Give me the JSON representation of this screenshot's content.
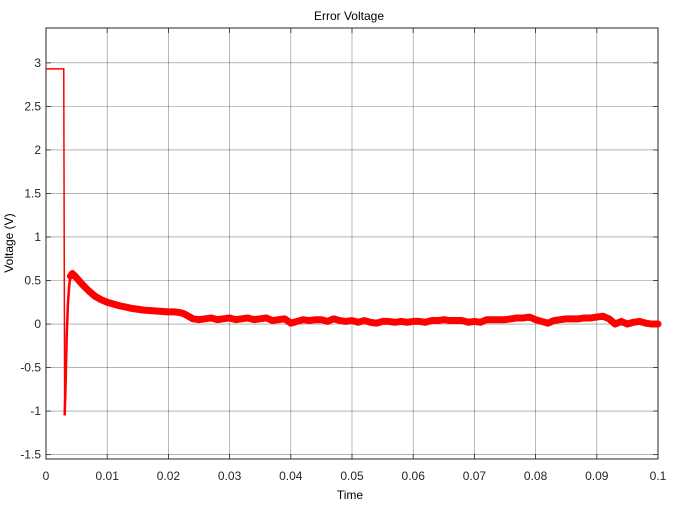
{
  "chart_data": {
    "type": "line",
    "title": "Error Voltage",
    "xlabel": "Time",
    "ylabel": "Voltage (V)",
    "xlim": [
      0,
      0.1
    ],
    "ylim": [
      -1.55,
      3.4
    ],
    "grid": true,
    "x_ticks": [
      0,
      0.01,
      0.02,
      0.03,
      0.04,
      0.05,
      0.06,
      0.07,
      0.08,
      0.09,
      0.1
    ],
    "x_tick_labels": [
      "0",
      "0.01",
      "0.02",
      "0.03",
      "0.04",
      "0.05",
      "0.06",
      "0.07",
      "0.08",
      "0.09",
      "0.1"
    ],
    "y_ticks": [
      -1.5,
      -1,
      -0.5,
      0,
      0.5,
      1,
      1.5,
      2,
      2.5,
      3
    ],
    "y_tick_labels": [
      "-1.5",
      "-1",
      "-0.5",
      "0",
      "0.5",
      "1",
      "1.5",
      "2",
      "2.5",
      "3"
    ],
    "series": [
      {
        "color": "#ff0000",
        "x": [
          0,
          0.0029,
          0.00305,
          0.0032,
          0.0034,
          0.0036,
          0.0038,
          0.004,
          0.0043,
          0.0046,
          0.005,
          0.006,
          0.007,
          0.008,
          0.009,
          0.01,
          0.012,
          0.014,
          0.016,
          0.018,
          0.02,
          0.021,
          0.022,
          0.0225,
          0.023,
          0.024,
          0.025,
          0.026,
          0.027,
          0.028,
          0.029,
          0.03,
          0.031,
          0.032,
          0.033,
          0.034,
          0.035,
          0.036,
          0.037,
          0.038,
          0.039,
          0.04,
          0.041,
          0.042,
          0.043,
          0.044,
          0.045,
          0.046,
          0.047,
          0.048,
          0.049,
          0.05,
          0.051,
          0.052,
          0.053,
          0.054,
          0.055,
          0.056,
          0.057,
          0.058,
          0.059,
          0.06,
          0.061,
          0.062,
          0.063,
          0.064,
          0.065,
          0.066,
          0.067,
          0.068,
          0.069,
          0.07,
          0.071,
          0.072,
          0.073,
          0.074,
          0.075,
          0.076,
          0.077,
          0.078,
          0.079,
          0.08,
          0.081,
          0.082,
          0.083,
          0.084,
          0.085,
          0.086,
          0.087,
          0.088,
          0.089,
          0.09,
          0.091,
          0.092,
          0.093,
          0.094,
          0.095,
          0.096,
          0.097,
          0.098,
          0.099,
          0.1
        ],
        "y": [
          2.93,
          2.93,
          -1.05,
          -0.7,
          -0.1,
          0.25,
          0.45,
          0.55,
          0.58,
          0.56,
          0.53,
          0.45,
          0.38,
          0.32,
          0.28,
          0.25,
          0.21,
          0.18,
          0.16,
          0.15,
          0.14,
          0.14,
          0.13,
          0.12,
          0.1,
          0.06,
          0.05,
          0.06,
          0.07,
          0.05,
          0.06,
          0.07,
          0.05,
          0.06,
          0.07,
          0.05,
          0.06,
          0.07,
          0.04,
          0.05,
          0.06,
          0.01,
          0.03,
          0.05,
          0.04,
          0.05,
          0.05,
          0.03,
          0.06,
          0.04,
          0.03,
          0.04,
          0.02,
          0.04,
          0.02,
          0.01,
          0.03,
          0.03,
          0.02,
          0.03,
          0.02,
          0.03,
          0.03,
          0.02,
          0.04,
          0.04,
          0.05,
          0.04,
          0.04,
          0.04,
          0.02,
          0.03,
          0.02,
          0.05,
          0.05,
          0.05,
          0.05,
          0.06,
          0.07,
          0.07,
          0.08,
          0.05,
          0.03,
          0.01,
          0.04,
          0.05,
          0.06,
          0.06,
          0.06,
          0.07,
          0.07,
          0.08,
          0.09,
          0.06,
          0.0,
          0.03,
          0.0,
          0.02,
          0.03,
          0.01,
          0.0,
          0.0
        ]
      }
    ]
  }
}
